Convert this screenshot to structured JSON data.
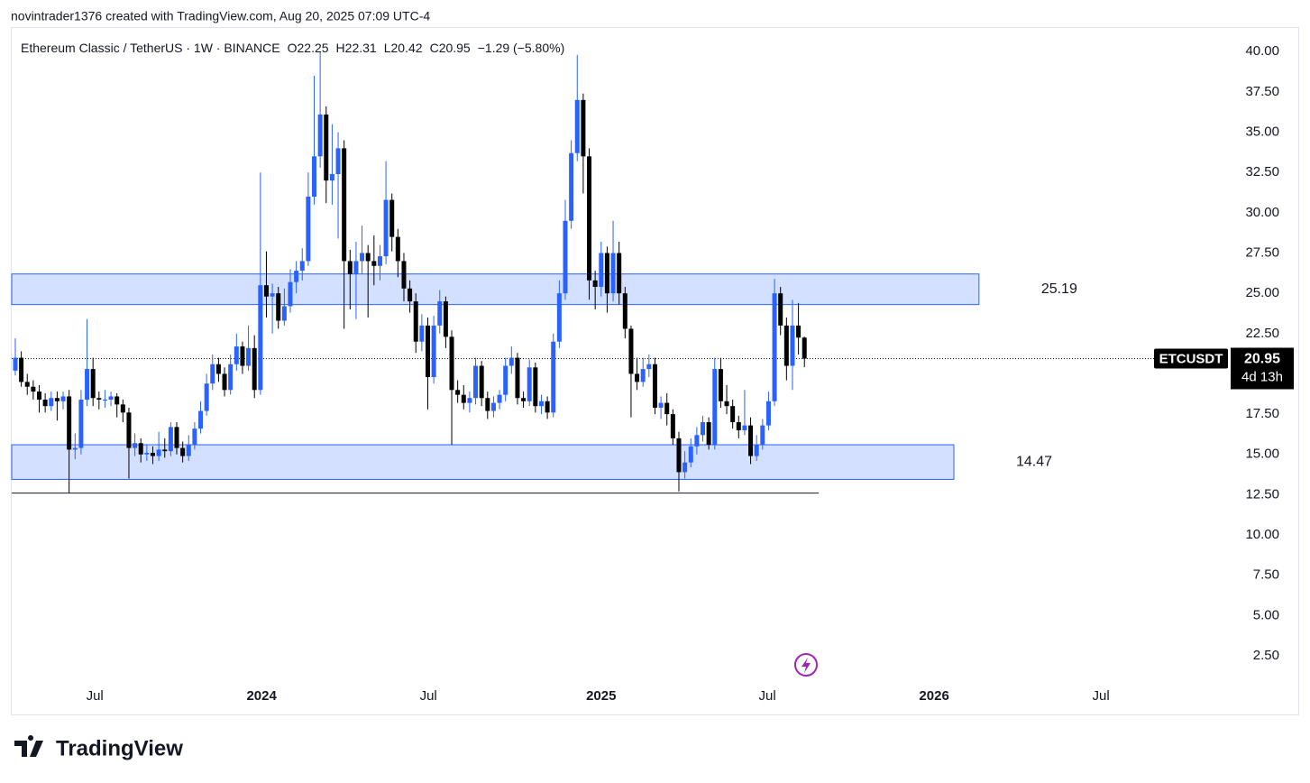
{
  "header": {
    "caption": "novintrader1376 created with TradingView.com, Aug 20, 2025 07:09 UTC-4"
  },
  "chart_data": {
    "type": "candlestick",
    "symbol": "Ethereum Classic / TetherUS · 1W · BINANCE",
    "ohlc_labels": [
      "O",
      "H",
      "L",
      "C"
    ],
    "change": "−1.29 (−5.80%)",
    "ticker": "ETCUSDT",
    "countdown": "4d 13h",
    "up_color": "#2962ff",
    "down_color": "#000000",
    "candles": [
      [
        20.2,
        22.2,
        19.9,
        21.0
      ],
      [
        21.0,
        21.4,
        19.2,
        19.5
      ],
      [
        19.5,
        20.0,
        18.7,
        19.2
      ],
      [
        19.2,
        19.6,
        18.4,
        18.9
      ],
      [
        18.9,
        19.3,
        17.6,
        18.4
      ],
      [
        18.4,
        18.8,
        17.6,
        18.0
      ],
      [
        18.0,
        18.9,
        17.7,
        18.5
      ],
      [
        18.5,
        18.9,
        17.1,
        18.3
      ],
      [
        18.3,
        18.9,
        17.8,
        18.6
      ],
      [
        18.6,
        19.0,
        12.6,
        15.3
      ],
      [
        15.3,
        16.3,
        14.7,
        15.4
      ],
      [
        15.4,
        19.0,
        15.0,
        18.4
      ],
      [
        18.4,
        23.4,
        18.0,
        20.3
      ],
      [
        20.3,
        21.0,
        18.0,
        18.5
      ],
      [
        18.5,
        18.9,
        17.8,
        18.4
      ],
      [
        18.4,
        19.0,
        17.9,
        18.4
      ],
      [
        18.4,
        18.9,
        18.0,
        18.6
      ],
      [
        18.6,
        18.8,
        17.3,
        18.1
      ],
      [
        18.1,
        18.4,
        17.0,
        17.6
      ],
      [
        17.6,
        17.9,
        13.5,
        15.4
      ],
      [
        15.4,
        16.3,
        14.9,
        15.7
      ],
      [
        15.7,
        16.0,
        14.5,
        15.0
      ],
      [
        15.0,
        15.6,
        14.6,
        15.1
      ],
      [
        15.1,
        15.5,
        14.4,
        14.9
      ],
      [
        14.9,
        16.4,
        14.6,
        15.3
      ],
      [
        15.3,
        16.0,
        14.8,
        15.2
      ],
      [
        15.2,
        17.0,
        14.9,
        16.7
      ],
      [
        16.7,
        17.0,
        15.0,
        15.4
      ],
      [
        15.4,
        15.8,
        14.5,
        14.9
      ],
      [
        14.9,
        16.2,
        14.6,
        15.6
      ],
      [
        15.6,
        17.0,
        15.3,
        16.6
      ],
      [
        16.6,
        18.3,
        16.3,
        17.7
      ],
      [
        17.7,
        20.0,
        17.4,
        19.4
      ],
      [
        19.4,
        21.2,
        19.0,
        20.6
      ],
      [
        20.6,
        21.0,
        19.5,
        20.0
      ],
      [
        20.0,
        20.4,
        18.6,
        19.0
      ],
      [
        19.0,
        21.2,
        18.7,
        20.6
      ],
      [
        20.6,
        22.5,
        20.2,
        21.7
      ],
      [
        21.7,
        22.0,
        20.0,
        20.5
      ],
      [
        20.5,
        23.0,
        20.2,
        21.6
      ],
      [
        21.6,
        22.4,
        18.5,
        19.0
      ],
      [
        19.0,
        32.5,
        18.7,
        25.5
      ],
      [
        25.5,
        27.6,
        23.5,
        24.8
      ],
      [
        24.8,
        25.6,
        22.5,
        25.0
      ],
      [
        25.0,
        25.4,
        22.8,
        23.3
      ],
      [
        23.3,
        25.3,
        23.0,
        24.2
      ],
      [
        24.2,
        26.5,
        23.8,
        25.7
      ],
      [
        25.7,
        27.0,
        25.0,
        26.4
      ],
      [
        26.4,
        27.8,
        25.8,
        27.0
      ],
      [
        27.0,
        32.5,
        26.7,
        31.0
      ],
      [
        31.0,
        38.5,
        30.5,
        33.5
      ],
      [
        33.5,
        40.0,
        32.8,
        36.1
      ],
      [
        36.1,
        36.6,
        30.6,
        32.0
      ],
      [
        32.0,
        35.5,
        30.5,
        32.4
      ],
      [
        32.4,
        35.0,
        28.4,
        34.0
      ],
      [
        34.0,
        34.5,
        22.8,
        27.0
      ],
      [
        27.0,
        27.7,
        24.0,
        26.2
      ],
      [
        26.2,
        28.2,
        23.4,
        27.0
      ],
      [
        27.0,
        29.2,
        26.2,
        27.5
      ],
      [
        27.5,
        28.0,
        23.5,
        27.0
      ],
      [
        27.0,
        28.6,
        25.5,
        26.7
      ],
      [
        26.7,
        28.0,
        25.8,
        27.3
      ],
      [
        27.3,
        33.2,
        26.8,
        30.8
      ],
      [
        30.8,
        31.2,
        27.6,
        28.5
      ],
      [
        28.5,
        29.0,
        26.0,
        27.0
      ],
      [
        27.0,
        27.5,
        24.5,
        25.3
      ],
      [
        25.3,
        25.8,
        23.8,
        24.5
      ],
      [
        24.5,
        25.0,
        21.3,
        22.0
      ],
      [
        22.0,
        23.7,
        21.4,
        23.0
      ],
      [
        23.0,
        23.5,
        17.8,
        19.8
      ],
      [
        19.8,
        23.6,
        19.4,
        23.0
      ],
      [
        23.0,
        25.2,
        22.5,
        24.5
      ],
      [
        24.5,
        24.8,
        21.6,
        22.3
      ],
      [
        22.3,
        22.7,
        15.6,
        19.0
      ],
      [
        19.0,
        19.6,
        18.2,
        18.7
      ],
      [
        18.7,
        19.3,
        17.8,
        18.2
      ],
      [
        18.2,
        18.9,
        17.6,
        18.5
      ],
      [
        18.5,
        21.0,
        18.1,
        20.5
      ],
      [
        20.5,
        20.8,
        18.0,
        18.5
      ],
      [
        18.5,
        18.9,
        17.2,
        17.7
      ],
      [
        17.7,
        18.6,
        17.3,
        18.2
      ],
      [
        18.2,
        19.0,
        17.8,
        18.7
      ],
      [
        18.7,
        21.0,
        18.3,
        20.5
      ],
      [
        20.5,
        21.7,
        20.0,
        21.0
      ],
      [
        21.0,
        21.3,
        18.1,
        18.5
      ],
      [
        18.5,
        18.9,
        17.9,
        18.3
      ],
      [
        18.3,
        20.9,
        18.0,
        20.4
      ],
      [
        20.4,
        20.7,
        17.6,
        18.0
      ],
      [
        18.0,
        18.7,
        17.5,
        18.3
      ],
      [
        18.3,
        18.6,
        17.2,
        17.6
      ],
      [
        17.6,
        22.5,
        17.3,
        22.0
      ],
      [
        22.0,
        25.8,
        21.6,
        25.0
      ],
      [
        25.0,
        30.8,
        24.6,
        29.5
      ],
      [
        29.5,
        34.5,
        29.0,
        33.7
      ],
      [
        33.7,
        39.8,
        33.2,
        37.0
      ],
      [
        37.0,
        37.4,
        31.2,
        33.5
      ],
      [
        33.5,
        34.0,
        24.6,
        25.8
      ],
      [
        25.8,
        26.4,
        24.0,
        25.4
      ],
      [
        25.4,
        28.2,
        24.8,
        27.5
      ],
      [
        27.5,
        27.9,
        23.8,
        25.0
      ],
      [
        25.0,
        29.5,
        24.5,
        27.5
      ],
      [
        27.5,
        28.2,
        24.3,
        25.0
      ],
      [
        25.0,
        25.4,
        22.2,
        22.8
      ],
      [
        22.8,
        23.0,
        17.3,
        20.0
      ],
      [
        20.0,
        21.0,
        19.0,
        19.5
      ],
      [
        19.5,
        21.0,
        19.2,
        20.3
      ],
      [
        20.3,
        21.2,
        19.8,
        20.6
      ],
      [
        20.6,
        21.0,
        17.5,
        17.9
      ],
      [
        17.9,
        18.6,
        17.2,
        18.2
      ],
      [
        18.2,
        18.8,
        16.8,
        17.5
      ],
      [
        17.5,
        17.8,
        15.6,
        16.0
      ],
      [
        16.0,
        16.4,
        12.7,
        13.9
      ],
      [
        13.9,
        15.2,
        13.5,
        14.5
      ],
      [
        14.5,
        16.0,
        14.2,
        15.5
      ],
      [
        15.5,
        16.7,
        15.0,
        16.2
      ],
      [
        16.2,
        17.4,
        15.8,
        17.0
      ],
      [
        17.0,
        17.3,
        15.3,
        15.6
      ],
      [
        15.6,
        21.0,
        15.3,
        20.3
      ],
      [
        20.3,
        21.0,
        17.9,
        18.3
      ],
      [
        18.3,
        19.3,
        17.5,
        18.0
      ],
      [
        18.0,
        18.4,
        16.6,
        17.0
      ],
      [
        17.0,
        17.4,
        16.0,
        16.5
      ],
      [
        16.5,
        19.0,
        16.2,
        16.8
      ],
      [
        16.8,
        17.3,
        14.4,
        14.9
      ],
      [
        14.9,
        16.2,
        14.6,
        15.6
      ],
      [
        15.6,
        17.2,
        15.3,
        16.8
      ],
      [
        16.8,
        18.9,
        16.5,
        18.3
      ],
      [
        18.3,
        25.9,
        18.0,
        25.0
      ],
      [
        25.0,
        25.4,
        22.4,
        23.0
      ],
      [
        23.0,
        23.5,
        19.6,
        20.5
      ],
      [
        20.5,
        24.6,
        19.0,
        23.0
      ],
      [
        23.0,
        24.4,
        21.2,
        22.25
      ],
      [
        22.25,
        22.31,
        20.42,
        20.95
      ]
    ],
    "zones": [
      {
        "value": 25.19,
        "top": 26.2,
        "bottom": 24.3,
        "x_end": 161.2
      },
      {
        "value": 14.47,
        "top": 15.6,
        "bottom": 13.45,
        "x_end": 157.0
      }
    ],
    "support_line": {
      "y": 12.6,
      "x_end": 134.4
    },
    "xlim": [
      -0.6,
      203.3
    ],
    "xticks": [
      {
        "value": 13.3,
        "label": "Jul"
      },
      {
        "value": 41.2,
        "label": "2024"
      },
      {
        "value": 69.1,
        "label": "Jul"
      },
      {
        "value": 98.0,
        "label": "2025"
      },
      {
        "value": 125.8,
        "label": "Jul"
      },
      {
        "value": 153.7,
        "label": "2026"
      },
      {
        "value": 181.6,
        "label": "Jul"
      }
    ],
    "ylim": [
      0.82,
      41.47
    ],
    "yticks": [
      {
        "value": 40,
        "label": "40.00"
      },
      {
        "value": 37.5,
        "label": "37.50"
      },
      {
        "value": 35,
        "label": "35.00"
      },
      {
        "value": 32.5,
        "label": "32.50"
      },
      {
        "value": 30,
        "label": "30.00"
      },
      {
        "value": 27.5,
        "label": "27.50"
      },
      {
        "value": 25,
        "label": "25.00"
      },
      {
        "value": 22.5,
        "label": "22.50"
      },
      {
        "value": 20,
        "label": "20.00"
      },
      {
        "value": 17.5,
        "label": "17.50"
      },
      {
        "value": 15,
        "label": "15.00"
      },
      {
        "value": 12.5,
        "label": "12.50"
      },
      {
        "value": 10,
        "label": "10.00"
      },
      {
        "value": 7.5,
        "label": "7.50"
      },
      {
        "value": 5,
        "label": "5.00"
      },
      {
        "value": 2.5,
        "label": "2.50"
      }
    ]
  },
  "footer": {
    "brand": "TradingView"
  }
}
